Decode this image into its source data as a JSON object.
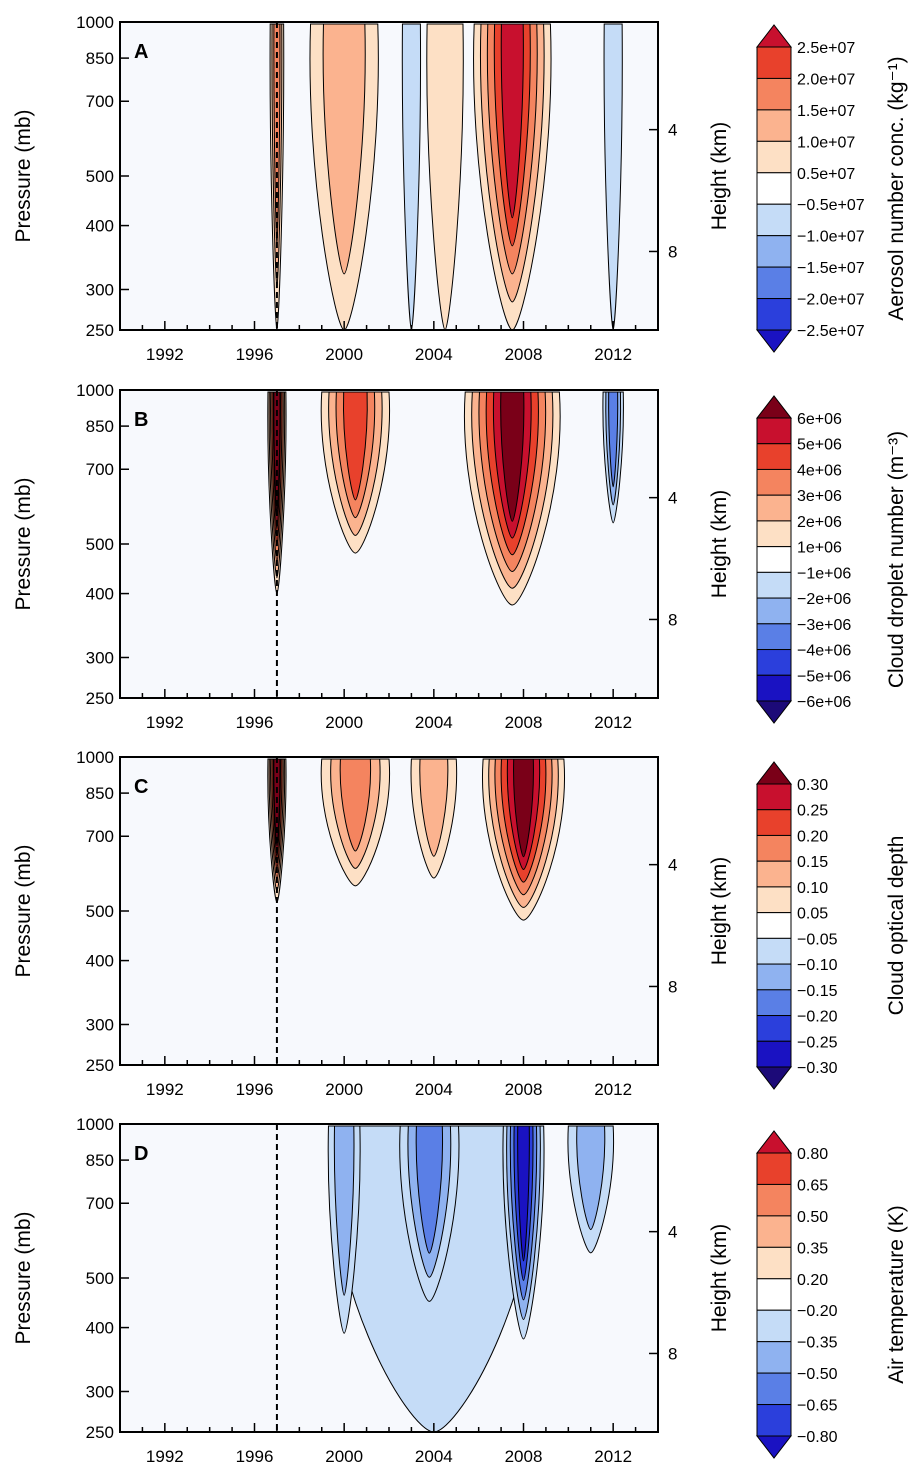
{
  "chart_data": [
    {
      "type": "heatmap",
      "panel_label": "A",
      "ylabel": "Pressure (mb)",
      "y2label": "Height (km)",
      "colorbar_label": "Aerosol number conc. (kg⁻¹)",
      "x_ticks": [
        "1992",
        "1996",
        "2000",
        "2004",
        "2008",
        "2012"
      ],
      "y_ticks": [
        "250",
        "300",
        "400",
        "500",
        "700",
        "850",
        "1000"
      ],
      "y2_ticks": [
        "8",
        "4"
      ],
      "colorbar_levels": [
        "2.5e+07",
        "2.0e+07",
        "1.5e+07",
        "1.0e+07",
        "0.5e+07",
        "−0.5e+07",
        "−1.0e+07",
        "−1.5e+07",
        "−2.0e+07",
        "−2.5e+07"
      ],
      "event_marker_year": 1997,
      "xlim": [
        1990,
        2014
      ],
      "ylim": [
        1000,
        250
      ],
      "features": [
        {
          "center_year": 1997.0,
          "width_years": 0.6,
          "top_mb": 250,
          "peak_level": 3
        },
        {
          "center_year": 2000.0,
          "width_years": 3.0,
          "top_mb": 250,
          "peak_level": 2
        },
        {
          "center_year": 2004.5,
          "width_years": 1.6,
          "top_mb": 250,
          "peak_level": 1
        },
        {
          "center_year": 2007.5,
          "width_years": 3.4,
          "top_mb": 250,
          "peak_level": 5
        },
        {
          "center_year": 2003.0,
          "width_years": 0.8,
          "top_mb": 250,
          "peak_level": -1
        },
        {
          "center_year": 2012.0,
          "width_years": 0.8,
          "top_mb": 250,
          "peak_level": -1
        }
      ]
    },
    {
      "type": "heatmap",
      "panel_label": "B",
      "ylabel": "Pressure (mb)",
      "y2label": "Height (km)",
      "colorbar_label": "Cloud droplet number (m⁻³)",
      "x_ticks": [
        "1992",
        "1996",
        "2000",
        "2004",
        "2008",
        "2012"
      ],
      "y_ticks": [
        "250",
        "300",
        "400",
        "500",
        "700",
        "850",
        "1000"
      ],
      "y2_ticks": [
        "8",
        "4"
      ],
      "colorbar_levels": [
        "6e+06",
        "5e+06",
        "4e+06",
        "3e+06",
        "2e+06",
        "1e+06",
        "−1e+06",
        "−2e+06",
        "−3e+06",
        "−4e+06",
        "−5e+06",
        "−6e+06"
      ],
      "event_marker_year": 1997,
      "xlim": [
        1990,
        2014
      ],
      "ylim": [
        1000,
        250
      ],
      "features": [
        {
          "center_year": 1997.0,
          "width_years": 0.8,
          "top_mb": 400,
          "peak_level": 6
        },
        {
          "center_year": 2000.5,
          "width_years": 3.0,
          "top_mb": 480,
          "peak_level": 4
        },
        {
          "center_year": 2007.5,
          "width_years": 4.2,
          "top_mb": 380,
          "peak_level": 6
        },
        {
          "center_year": 2012.0,
          "width_years": 0.9,
          "top_mb": 550,
          "peak_level": -3
        }
      ]
    },
    {
      "type": "heatmap",
      "panel_label": "C",
      "ylabel": "Pressure (mb)",
      "y2label": "Height (km)",
      "colorbar_label": "Cloud optical depth",
      "x_ticks": [
        "1992",
        "1996",
        "2000",
        "2004",
        "2008",
        "2012"
      ],
      "y_ticks": [
        "250",
        "300",
        "400",
        "500",
        "700",
        "850",
        "1000"
      ],
      "y2_ticks": [
        "8",
        "4"
      ],
      "colorbar_levels": [
        "0.30",
        "0.25",
        "0.20",
        "0.15",
        "0.10",
        "0.05",
        "−0.05",
        "−0.10",
        "−0.15",
        "−0.20",
        "−0.25",
        "−0.30"
      ],
      "event_marker_year": 1997,
      "xlim": [
        1990,
        2014
      ],
      "ylim": [
        1000,
        250
      ],
      "features": [
        {
          "center_year": 1997.0,
          "width_years": 0.8,
          "top_mb": 520,
          "peak_level": 6
        },
        {
          "center_year": 2000.5,
          "width_years": 3.0,
          "top_mb": 560,
          "peak_level": 3
        },
        {
          "center_year": 2004.0,
          "width_years": 2.0,
          "top_mb": 580,
          "peak_level": 2
        },
        {
          "center_year": 2008.0,
          "width_years": 3.6,
          "top_mb": 480,
          "peak_level": 6
        }
      ]
    },
    {
      "type": "heatmap",
      "panel_label": "D",
      "ylabel": "Pressure (mb)",
      "y2label": "Height (km)",
      "colorbar_label": "Air temperature (K)",
      "x_ticks": [
        "1992",
        "1996",
        "2000",
        "2004",
        "2008",
        "2012"
      ],
      "y_ticks": [
        "250",
        "300",
        "400",
        "500",
        "700",
        "850",
        "1000"
      ],
      "y2_ticks": [
        "8",
        "4"
      ],
      "colorbar_levels": [
        "0.80",
        "0.65",
        "0.50",
        "0.35",
        "0.20",
        "−0.20",
        "−0.35",
        "−0.50",
        "−0.65",
        "−0.80"
      ],
      "event_marker_year": 1997,
      "xlim": [
        1990,
        2014
      ],
      "ylim": [
        1000,
        250
      ],
      "features": [
        {
          "center_year": 2004.0,
          "width_years": 9.0,
          "top_mb": 250,
          "peak_level": -1
        },
        {
          "center_year": 2000.0,
          "width_years": 1.4,
          "top_mb": 390,
          "peak_level": -2
        },
        {
          "center_year": 2003.8,
          "width_years": 2.6,
          "top_mb": 450,
          "peak_level": -3
        },
        {
          "center_year": 2008.0,
          "width_years": 1.8,
          "top_mb": 380,
          "peak_level": -5
        },
        {
          "center_year": 2011.0,
          "width_years": 2.0,
          "top_mb": 560,
          "peak_level": -2
        }
      ]
    }
  ],
  "colors": {
    "pos": [
      "#fde0c5",
      "#fbb38f",
      "#f4845f",
      "#e8412c",
      "#c8102e",
      "#7a0018"
    ],
    "neg": [
      "#c5dcf7",
      "#8fb2f0",
      "#5a7fe6",
      "#2b3fdc",
      "#1a12c2",
      "#1c0a78"
    ],
    "background": "#f7f9fd",
    "lightest": "#ffffff"
  }
}
